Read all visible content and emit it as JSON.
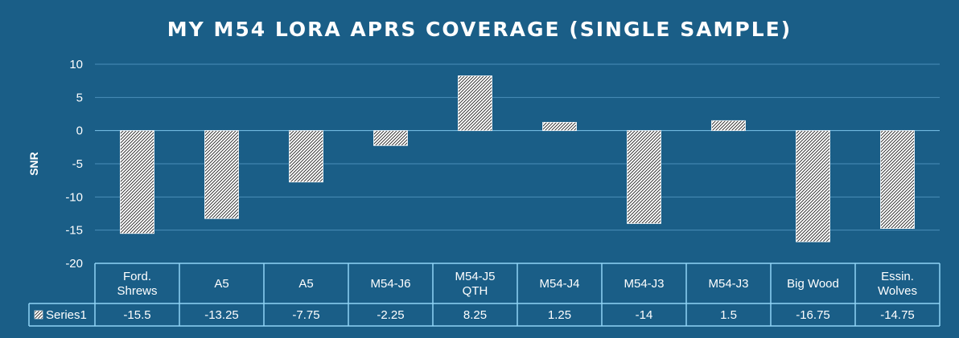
{
  "chart_data": {
    "type": "bar",
    "title": "MY M54 LORA APRS COVERAGE (SINGLE SAMPLE)",
    "ylabel": "SNR",
    "xlabel": "",
    "ylim": [
      -20,
      10
    ],
    "yticks": [
      10,
      5,
      0,
      -5,
      -10,
      -15,
      -20
    ],
    "grid": true,
    "data_table": true,
    "categories": [
      [
        "Ford.",
        "Shrews"
      ],
      [
        "A5"
      ],
      [
        "A5"
      ],
      [
        "M54-J6"
      ],
      [
        "M54-J5",
        "QTH"
      ],
      [
        "M54-J4"
      ],
      [
        "M54-J3"
      ],
      [
        "M54-J3"
      ],
      [
        "Big Wood"
      ],
      [
        "Essin.",
        "Wolves"
      ]
    ],
    "series": [
      {
        "name": "Series1",
        "values": [
          -15.5,
          -13.25,
          -7.75,
          -2.25,
          8.25,
          1.25,
          -14,
          1.5,
          -16.75,
          -14.75
        ],
        "fill": "hatched-white"
      }
    ],
    "colors": {
      "background": "#1a5e87",
      "grid": "#4a8fb8",
      "table_border": "#8fd4f5",
      "bar_fill": "#ffffff",
      "bar_hatch": "#1a1a1a",
      "text": "#ffffff"
    }
  }
}
